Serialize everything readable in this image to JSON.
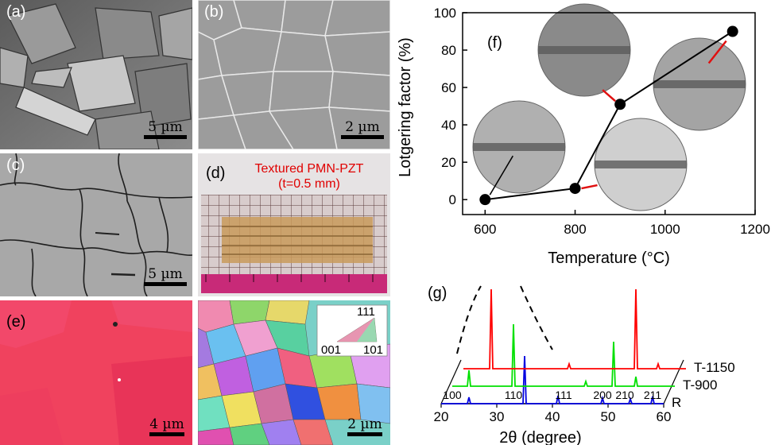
{
  "panels": {
    "a": {
      "label": "(a)",
      "scale": "5 µm"
    },
    "b": {
      "label": "(b)",
      "scale": "2 µm"
    },
    "c": {
      "label": "(c)",
      "scale": "5 µm"
    },
    "d": {
      "label": "(d)",
      "title_line1": "Textured PMN-PZT",
      "title_line2": "(t=0.5 mm)"
    },
    "e": {
      "label": "(e)",
      "scale_left": "4 µm",
      "scale_right": "2 µm",
      "ipf": {
        "top": "111",
        "left": "001",
        "right": "101"
      }
    },
    "f": {
      "label": "(f)"
    },
    "g": {
      "label": "(g)"
    }
  },
  "chart_data": [
    {
      "type": "line",
      "panel": "(f)",
      "xlabel": "Temperature (°C)",
      "ylabel": "Lotgering factor (%)",
      "x": [
        600,
        800,
        900,
        1150
      ],
      "y": [
        0,
        6,
        51,
        90
      ],
      "xlim": [
        550,
        1200
      ],
      "ylim": [
        -8,
        100
      ],
      "xticks": [
        600,
        800,
        1000,
        1200
      ],
      "yticks": [
        0,
        20,
        40,
        60,
        80,
        100
      ],
      "colors": {
        "line": "#000000",
        "arrow": "#e01010"
      }
    },
    {
      "type": "line",
      "panel": "(g)",
      "xlabel": "2θ (degree)",
      "xticks": [
        20,
        30,
        40,
        50,
        60
      ],
      "xlim": [
        20,
        60
      ],
      "series": [
        {
          "name": "R",
          "color": "#0000e0"
        },
        {
          "name": "T-900",
          "color": "#00e000"
        },
        {
          "name": "T-1150",
          "color": "#ff0000"
        }
      ],
      "peak_labels": [
        "100",
        "110",
        "111",
        "200",
        "210",
        "211"
      ]
    }
  ]
}
